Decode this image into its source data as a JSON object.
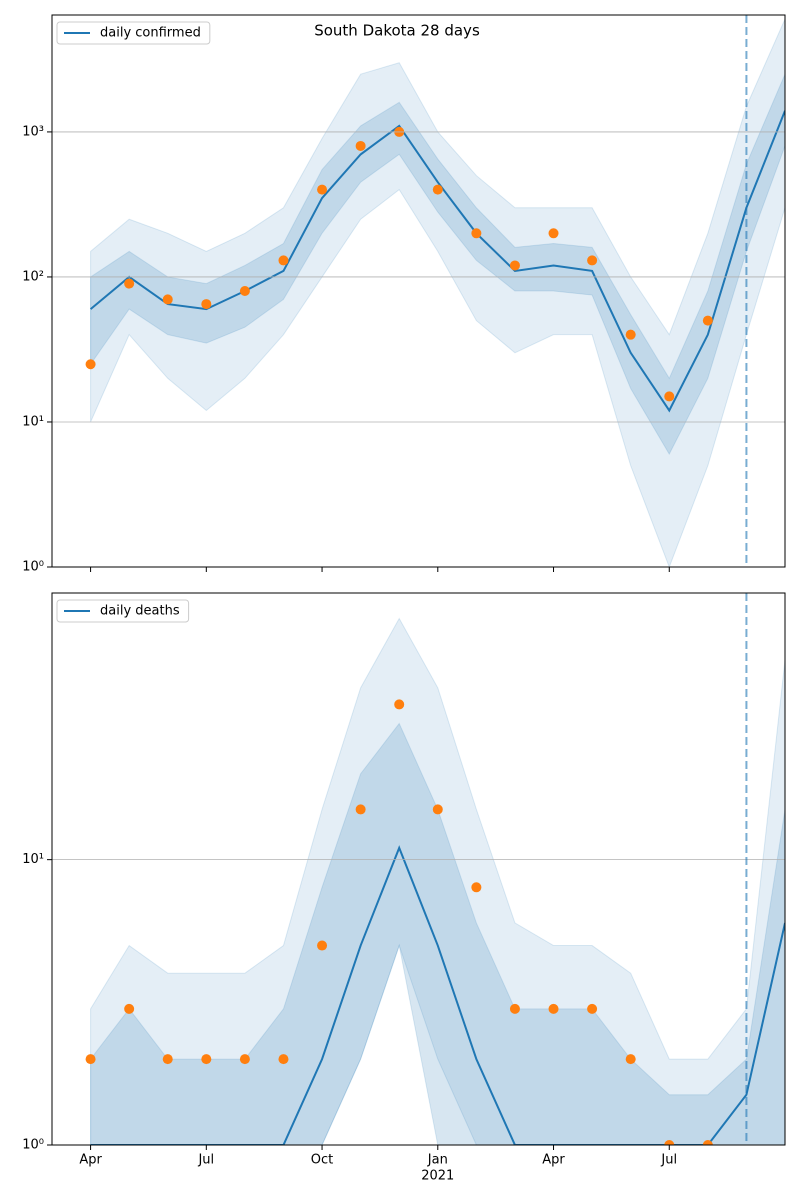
{
  "chart_data": [
    {
      "type": "line",
      "title": "South Dakota 28 days",
      "log_y": true,
      "grid": true,
      "legend": "upper left",
      "x": [
        "2020-03",
        "2020-04",
        "2020-05",
        "2020-06",
        "2020-07",
        "2020-08",
        "2020-09",
        "2020-10",
        "2020-11",
        "2020-12",
        "2021-01",
        "2021-02",
        "2021-03",
        "2021-04",
        "2021-05",
        "2021-06",
        "2021-07",
        "2021-08",
        "2021-09",
        "2021-10"
      ],
      "xlim": [
        "2020-03",
        "2021-10"
      ],
      "ylim": [
        1,
        6400
      ],
      "yticks": [
        {
          "value": 1,
          "label": "10⁰"
        },
        {
          "value": 10,
          "label": "10¹"
        },
        {
          "value": 100,
          "label": "10²"
        },
        {
          "value": 1000,
          "label": "10³"
        }
      ],
      "series": [
        {
          "name": "daily confirmed",
          "color": "#1f77b4",
          "values": [
            null,
            60,
            100,
            65,
            60,
            80,
            110,
            350,
            700,
            1100,
            450,
            200,
            110,
            120,
            110,
            30,
            12,
            40,
            300,
            1400
          ]
        },
        {
          "style": "scatter",
          "color": "#ff7f0e",
          "values": [
            null,
            25,
            90,
            70,
            65,
            80,
            130,
            400,
            800,
            1000,
            400,
            200,
            120,
            200,
            130,
            40,
            15,
            50,
            null,
            null
          ]
        }
      ],
      "bands": [
        {
          "color": "#1f77b4",
          "opacity": 0.12,
          "lower": [
            null,
            10,
            40,
            20,
            12,
            20,
            40,
            100,
            250,
            400,
            150,
            50,
            30,
            40,
            40,
            5,
            1,
            5,
            40,
            300
          ],
          "upper": [
            null,
            150,
            250,
            200,
            150,
            200,
            300,
            900,
            2500,
            3000,
            1000,
            500,
            300,
            300,
            300,
            100,
            40,
            200,
            1500,
            6000
          ]
        },
        {
          "color": "#1f77b4",
          "opacity": 0.18,
          "lower": [
            null,
            25,
            60,
            40,
            35,
            45,
            70,
            200,
            450,
            700,
            280,
            130,
            80,
            80,
            75,
            17,
            6,
            20,
            150,
            800
          ],
          "upper": [
            null,
            100,
            150,
            100,
            90,
            120,
            170,
            550,
            1100,
            1600,
            650,
            300,
            160,
            170,
            160,
            55,
            20,
            80,
            600,
            2500
          ]
        }
      ],
      "vline": {
        "x": "2021-09",
        "color": "#1f77b4"
      }
    },
    {
      "type": "line",
      "log_y": true,
      "grid": true,
      "legend": "upper left",
      "x": [
        "2020-03",
        "2020-04",
        "2020-05",
        "2020-06",
        "2020-07",
        "2020-08",
        "2020-09",
        "2020-10",
        "2020-11",
        "2020-12",
        "2021-01",
        "2021-02",
        "2021-03",
        "2021-04",
        "2021-05",
        "2021-06",
        "2021-07",
        "2021-08",
        "2021-09",
        "2021-10"
      ],
      "xlim": [
        "2020-03",
        "2021-10"
      ],
      "xticks": [
        {
          "value": "2020-04",
          "label": "Apr"
        },
        {
          "value": "2020-07",
          "label": "Jul"
        },
        {
          "value": "2020-10",
          "label": "Oct"
        },
        {
          "value": "2021-01",
          "label": "Jan"
        },
        {
          "value": "2021-04",
          "label": "Apr"
        },
        {
          "value": "2021-07",
          "label": "Jul"
        }
      ],
      "x_year_label": "2021",
      "ylim": [
        1,
        86
      ],
      "yticks": [
        {
          "value": 1,
          "label": "10⁰"
        },
        {
          "value": 10,
          "label": "10¹"
        }
      ],
      "series": [
        {
          "name": "daily deaths",
          "color": "#1f77b4",
          "values": [
            null,
            1,
            1,
            1,
            1,
            1,
            1,
            2,
            5,
            11,
            5,
            2,
            1,
            1,
            1,
            1,
            1,
            1,
            1.5,
            6
          ]
        },
        {
          "style": "scatter",
          "color": "#ff7f0e",
          "values": [
            null,
            2,
            3,
            2,
            2,
            2,
            2,
            5,
            15,
            35,
            15,
            8,
            3,
            3,
            3,
            2,
            1,
            1,
            null,
            null
          ]
        }
      ],
      "bands": [
        {
          "color": "#1f77b4",
          "opacity": 0.12,
          "lower": [
            null,
            1,
            1,
            1,
            1,
            1,
            1,
            1,
            2,
            5,
            2,
            1,
            1,
            1,
            1,
            1,
            1,
            1,
            1,
            1
          ],
          "upper": [
            null,
            3,
            5,
            4,
            4,
            4,
            5,
            15,
            40,
            70,
            40,
            15,
            6,
            5,
            5,
            4,
            2,
            2,
            3,
            50
          ]
        },
        {
          "color": "#1f77b4",
          "opacity": 0.18,
          "lower": [
            null,
            1,
            1,
            1,
            1,
            1,
            1,
            1,
            2,
            5,
            1,
            1,
            1,
            1,
            1,
            1,
            1,
            1,
            1,
            1
          ],
          "upper": [
            null,
            2,
            3,
            2,
            2,
            2,
            3,
            8,
            20,
            30,
            15,
            6,
            3,
            3,
            3,
            2,
            1.5,
            1.5,
            2,
            15
          ]
        }
      ],
      "vline": {
        "x": "2021-09",
        "color": "#1f77b4"
      }
    }
  ]
}
